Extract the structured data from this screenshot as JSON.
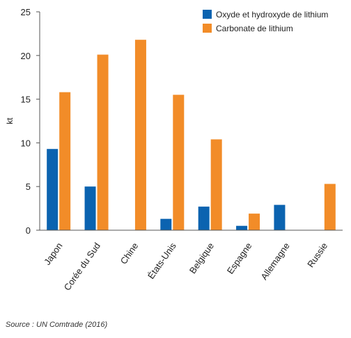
{
  "chart_data": {
    "type": "bar",
    "categories": [
      "Japon",
      "Corée du Sud",
      "Chine",
      "États-Unis",
      "Belgique",
      "Espagne",
      "Allemagne",
      "Russie"
    ],
    "series": [
      {
        "name": "Oxyde et hydroxyde de lithium",
        "color": "#0b63b0",
        "values": [
          9.3,
          5.0,
          0,
          1.3,
          2.7,
          0.5,
          2.9,
          0
        ]
      },
      {
        "name": "Carbonate de lithium",
        "color": "#f28c28",
        "values": [
          15.8,
          20.1,
          21.8,
          15.5,
          10.4,
          1.9,
          0,
          5.3
        ]
      }
    ],
    "ylabel": "kt",
    "ylim": [
      0,
      25
    ],
    "yticks": [
      0,
      5,
      10,
      15,
      20,
      25
    ],
    "legend": "top-right",
    "grid": false
  },
  "source": "Source : UN Comtrade (2016)"
}
